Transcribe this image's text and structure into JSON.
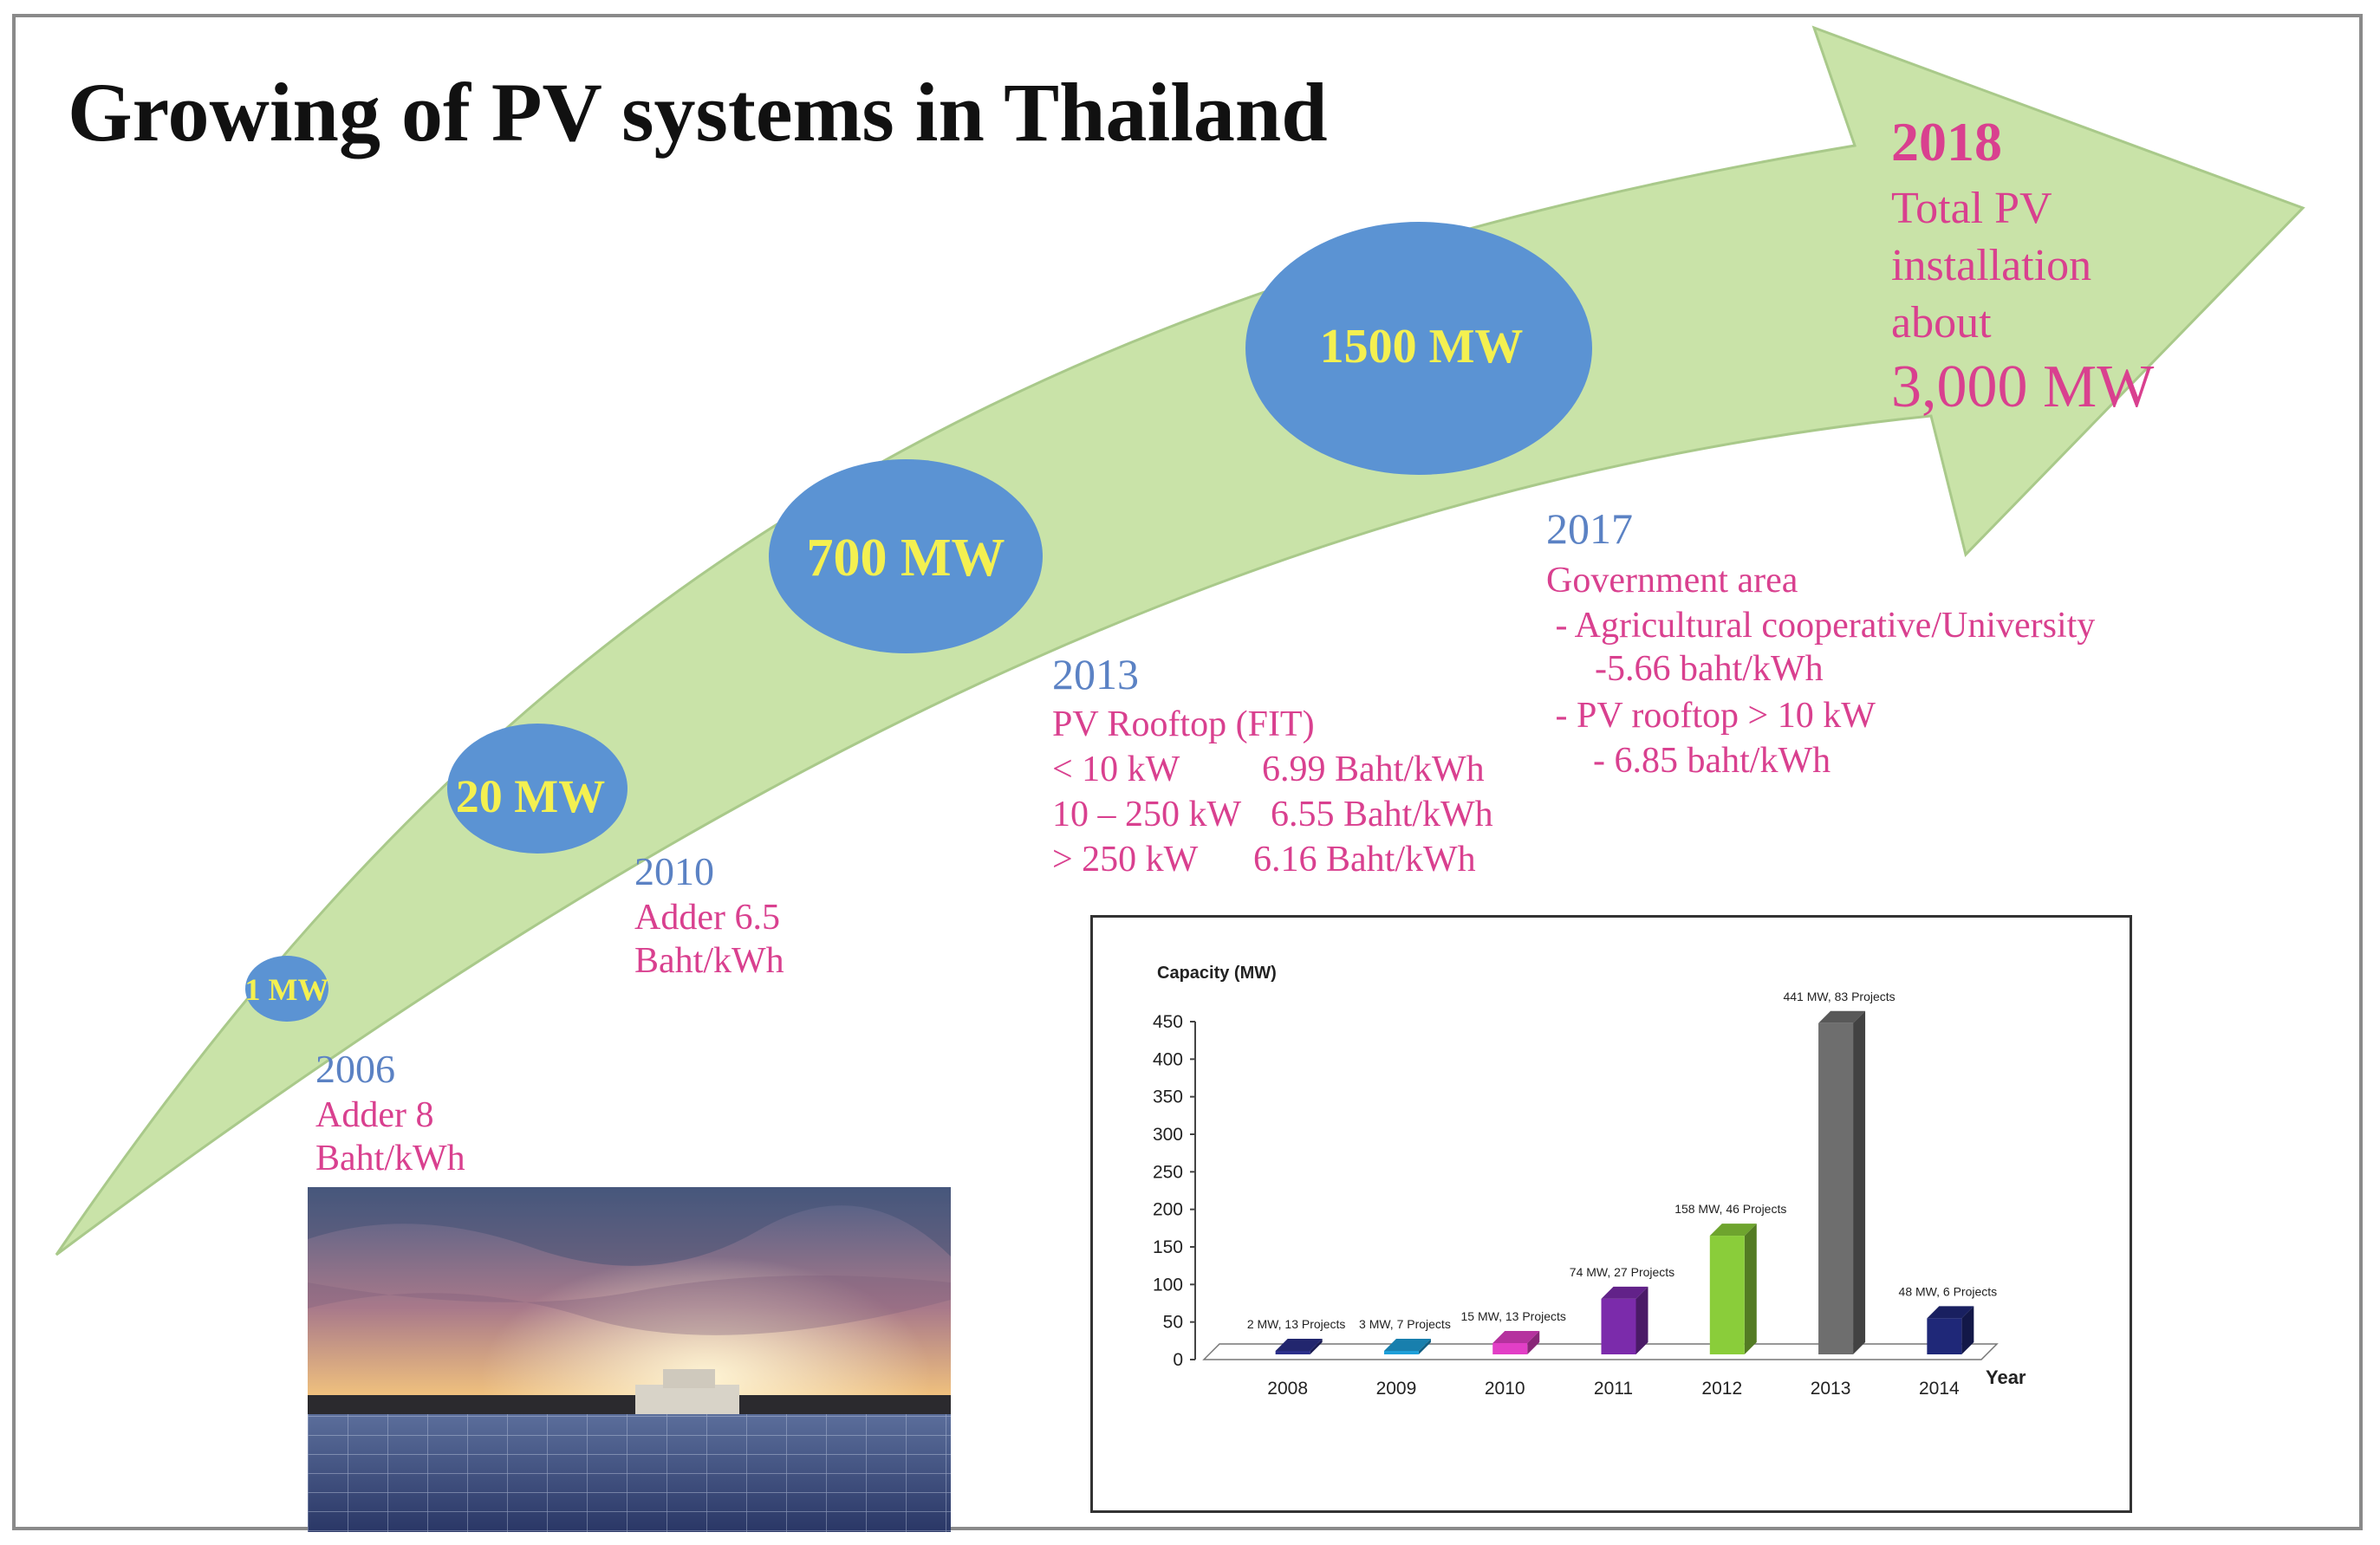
{
  "title": "Growing of PV systems in Thailand",
  "colors": {
    "arrow_fill": "#c9e3a8",
    "arrow_stroke": "#a9c98a",
    "bubble_fill": "#5b93d3",
    "bubble_text": "#f4f050",
    "year_text": "#5b82c4",
    "pink_text": "#d9408f"
  },
  "bubbles": [
    {
      "label": "1 MW"
    },
    {
      "label": "20 MW"
    },
    {
      "label": "700 MW"
    },
    {
      "label": "1500 MW"
    }
  ],
  "milestones": {
    "y2006": {
      "year": "2006",
      "lines": [
        "Adder 8",
        "Baht/kWh"
      ]
    },
    "y2010": {
      "year": "2010",
      "lines": [
        "Adder 6.5",
        "Baht/kWh"
      ]
    },
    "y2013": {
      "year": "2013",
      "heading": "PV Rooftop  (FIT)",
      "rows": [
        {
          "size": "< 10 kW",
          "rate": "6.99 Baht/kWh"
        },
        {
          "size": "10 – 250 kW",
          "rate": "6.55 Baht/kWh"
        },
        {
          "size": "> 250 kW",
          "rate": "6.16 Baht/kWh"
        }
      ]
    },
    "y2017": {
      "year": "2017",
      "lines": [
        "Government area",
        " - Agricultural cooperative/University",
        "-5.66 baht/kWh",
        " - PV rooftop > 10 kW",
        "- 6.85 baht/kWh"
      ]
    },
    "y2018": {
      "year": "2018",
      "lines": [
        "Total PV",
        "installation",
        "about"
      ],
      "total": "3,000 MW"
    }
  },
  "photo": {
    "alt": "solar panel field at sunset"
  },
  "chart_data": {
    "type": "bar",
    "title": "",
    "ylabel": "Capacity (MW)",
    "xlabel": "Year",
    "ylim": [
      0,
      450
    ],
    "yticks": [
      0,
      50,
      100,
      150,
      200,
      250,
      300,
      350,
      400,
      450
    ],
    "categories": [
      "2008",
      "2009",
      "2010",
      "2011",
      "2012",
      "2013",
      "2014"
    ],
    "values": [
      2,
      3,
      15,
      74,
      158,
      441,
      48
    ],
    "annotations": [
      "2 MW, 13 Projects",
      "3 MW, 7 Projects",
      "15 MW, 13 Projects",
      "74 MW, 27 Projects",
      "158 MW, 46 Projects",
      "441 MW, 83 Projects",
      "48 MW, 6 Projects"
    ],
    "colors": [
      "#2b2f8a",
      "#1e9fd8",
      "#e23fc6",
      "#7b2bab",
      "#8acd3a",
      "#6e6e6e",
      "#1f2878"
    ],
    "grid": false,
    "style": "3d"
  }
}
